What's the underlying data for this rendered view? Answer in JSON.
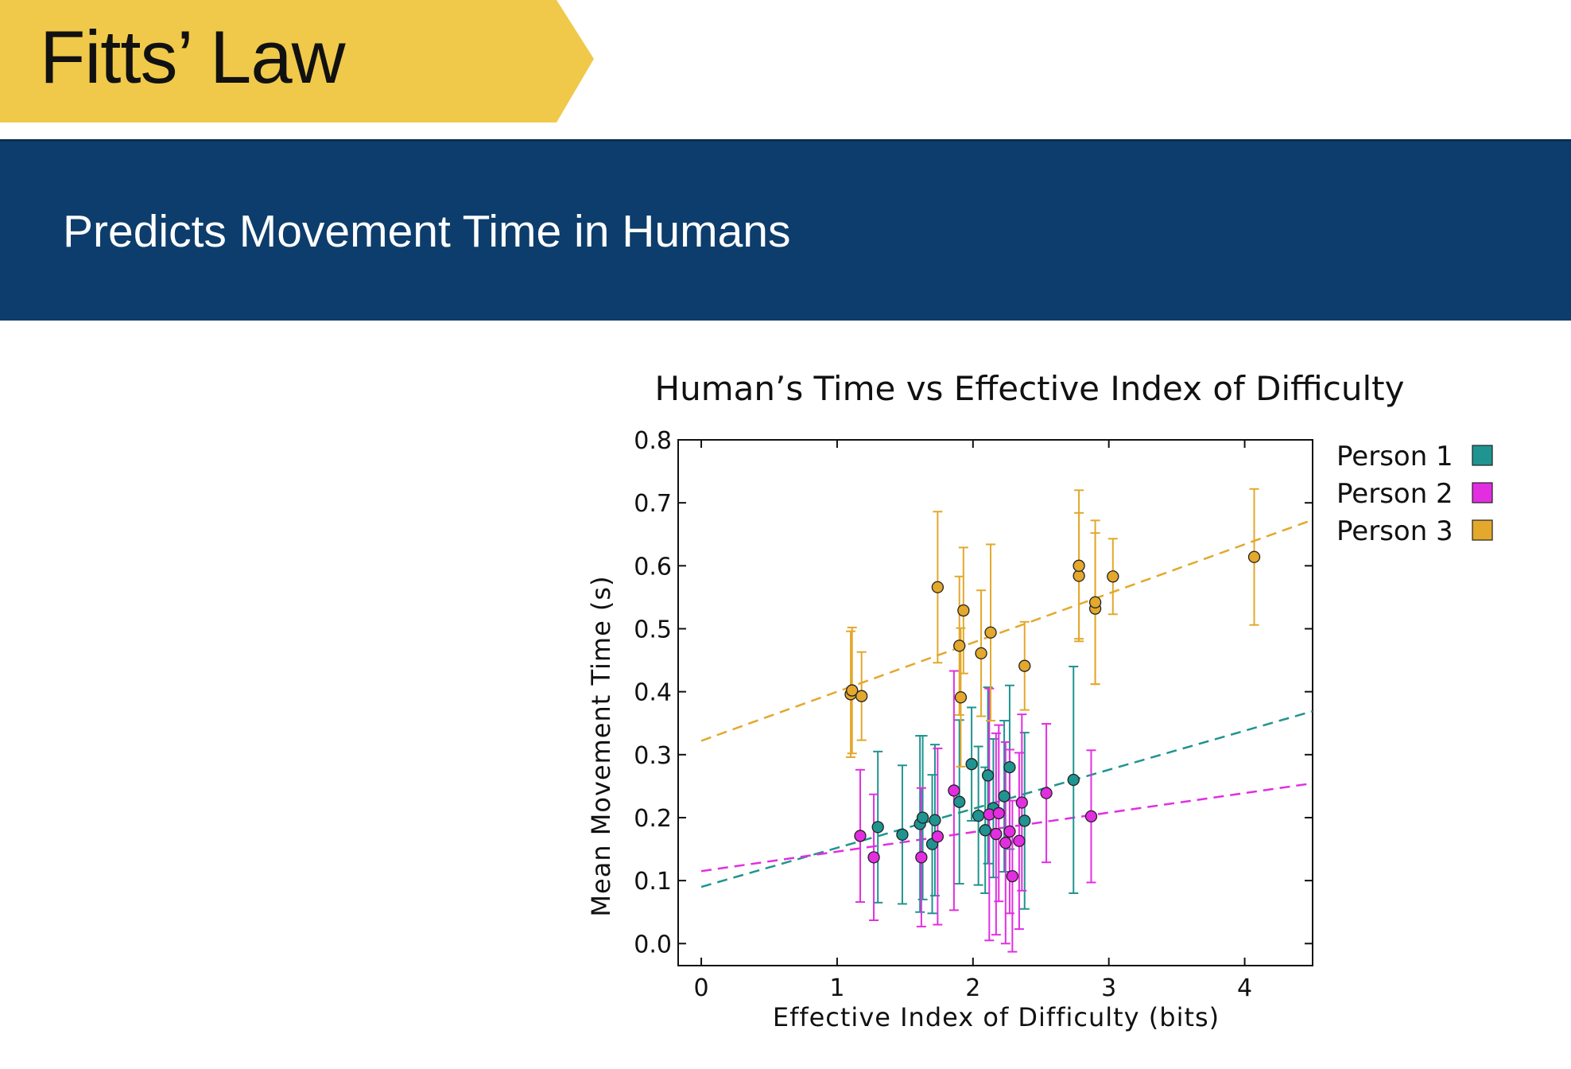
{
  "slide": {
    "title": "Fitts’ Law",
    "subtitle": "Predicts Movement Time in Humans",
    "title_banner_color": "#f0c94a",
    "subtitle_band_color": "#0c3d6c"
  },
  "chart_data": {
    "type": "scatter",
    "title": "Human’s Time vs Effective Index of Difficulty",
    "xlabel": "Effective Index of Difficulty (bits)",
    "ylabel": "Mean Movement Time (s)",
    "xlim": [
      -0.17,
      4.5
    ],
    "ylim": [
      -0.035,
      0.8
    ],
    "xticks": [
      0,
      1,
      2,
      3,
      4
    ],
    "yticks": [
      0.0,
      0.1,
      0.2,
      0.3,
      0.4,
      0.5,
      0.6,
      0.7,
      0.8
    ],
    "ytick_labels": [
      "0.0",
      "0.1",
      "0.2",
      "0.3",
      "0.4",
      "0.5",
      "0.6",
      "0.7",
      "0.8"
    ],
    "grid": false,
    "legend_position": "outside-right-top",
    "series": [
      {
        "name": "Person 1",
        "color": "#1f9490",
        "points": [
          {
            "x": 1.3,
            "y": 0.185,
            "err": 0.12
          },
          {
            "x": 1.48,
            "y": 0.173,
            "err": 0.11
          },
          {
            "x": 1.61,
            "y": 0.19,
            "err": 0.14
          },
          {
            "x": 1.63,
            "y": 0.2,
            "err": 0.13
          },
          {
            "x": 1.7,
            "y": 0.158,
            "err": 0.11
          },
          {
            "x": 1.72,
            "y": 0.196,
            "err": 0.12
          },
          {
            "x": 1.9,
            "y": 0.225,
            "err": 0.13
          },
          {
            "x": 1.99,
            "y": 0.285,
            "err": 0.09
          },
          {
            "x": 2.04,
            "y": 0.203,
            "err": 0.11
          },
          {
            "x": 2.09,
            "y": 0.18,
            "err": 0.1
          },
          {
            "x": 2.11,
            "y": 0.267,
            "err": 0.14
          },
          {
            "x": 2.15,
            "y": 0.215,
            "err": 0.11
          },
          {
            "x": 2.23,
            "y": 0.234,
            "err": 0.12
          },
          {
            "x": 2.27,
            "y": 0.28,
            "err": 0.13
          },
          {
            "x": 2.38,
            "y": 0.195,
            "err": 0.14
          },
          {
            "x": 2.74,
            "y": 0.26,
            "err": 0.18
          }
        ],
        "fit": {
          "slope": 0.062,
          "intercept": 0.09
        }
      },
      {
        "name": "Person 2",
        "color": "#e22ee0",
        "points": [
          {
            "x": 1.17,
            "y": 0.171,
            "err": 0.105
          },
          {
            "x": 1.27,
            "y": 0.137,
            "err": 0.1
          },
          {
            "x": 1.62,
            "y": 0.137,
            "err": 0.11
          },
          {
            "x": 1.74,
            "y": 0.17,
            "err": 0.14
          },
          {
            "x": 1.86,
            "y": 0.243,
            "err": 0.19
          },
          {
            "x": 2.12,
            "y": 0.205,
            "err": 0.2
          },
          {
            "x": 2.17,
            "y": 0.174,
            "err": 0.16
          },
          {
            "x": 2.19,
            "y": 0.207,
            "err": 0.14
          },
          {
            "x": 2.24,
            "y": 0.16,
            "err": 0.16
          },
          {
            "x": 2.27,
            "y": 0.178,
            "err": 0.13
          },
          {
            "x": 2.29,
            "y": 0.107,
            "err": 0.12
          },
          {
            "x": 2.34,
            "y": 0.163,
            "err": 0.14
          },
          {
            "x": 2.36,
            "y": 0.224,
            "err": 0.14
          },
          {
            "x": 2.54,
            "y": 0.239,
            "err": 0.11
          },
          {
            "x": 2.87,
            "y": 0.202,
            "err": 0.105
          }
        ],
        "fit": {
          "slope": 0.031,
          "intercept": 0.115
        }
      },
      {
        "name": "Person 3",
        "color": "#e3a82c",
        "points": [
          {
            "x": 1.1,
            "y": 0.396,
            "err": 0.1
          },
          {
            "x": 1.11,
            "y": 0.402,
            "err": 0.1
          },
          {
            "x": 1.18,
            "y": 0.393,
            "err": 0.07
          },
          {
            "x": 1.74,
            "y": 0.566,
            "err": 0.12
          },
          {
            "x": 1.9,
            "y": 0.473,
            "err": 0.11
          },
          {
            "x": 1.91,
            "y": 0.391,
            "err": 0.11
          },
          {
            "x": 1.93,
            "y": 0.529,
            "err": 0.1
          },
          {
            "x": 2.06,
            "y": 0.461,
            "err": 0.1
          },
          {
            "x": 2.13,
            "y": 0.494,
            "err": 0.14
          },
          {
            "x": 2.38,
            "y": 0.441,
            "err": 0.07
          },
          {
            "x": 2.78,
            "y": 0.584,
            "err": 0.1
          },
          {
            "x": 2.78,
            "y": 0.6,
            "err": 0.12
          },
          {
            "x": 2.9,
            "y": 0.532,
            "err": 0.12
          },
          {
            "x": 2.9,
            "y": 0.542,
            "err": 0.13
          },
          {
            "x": 3.03,
            "y": 0.583,
            "err": 0.06
          },
          {
            "x": 4.07,
            "y": 0.614,
            "err": 0.108
          }
        ],
        "fit": {
          "slope": 0.078,
          "intercept": 0.322
        }
      }
    ]
  }
}
